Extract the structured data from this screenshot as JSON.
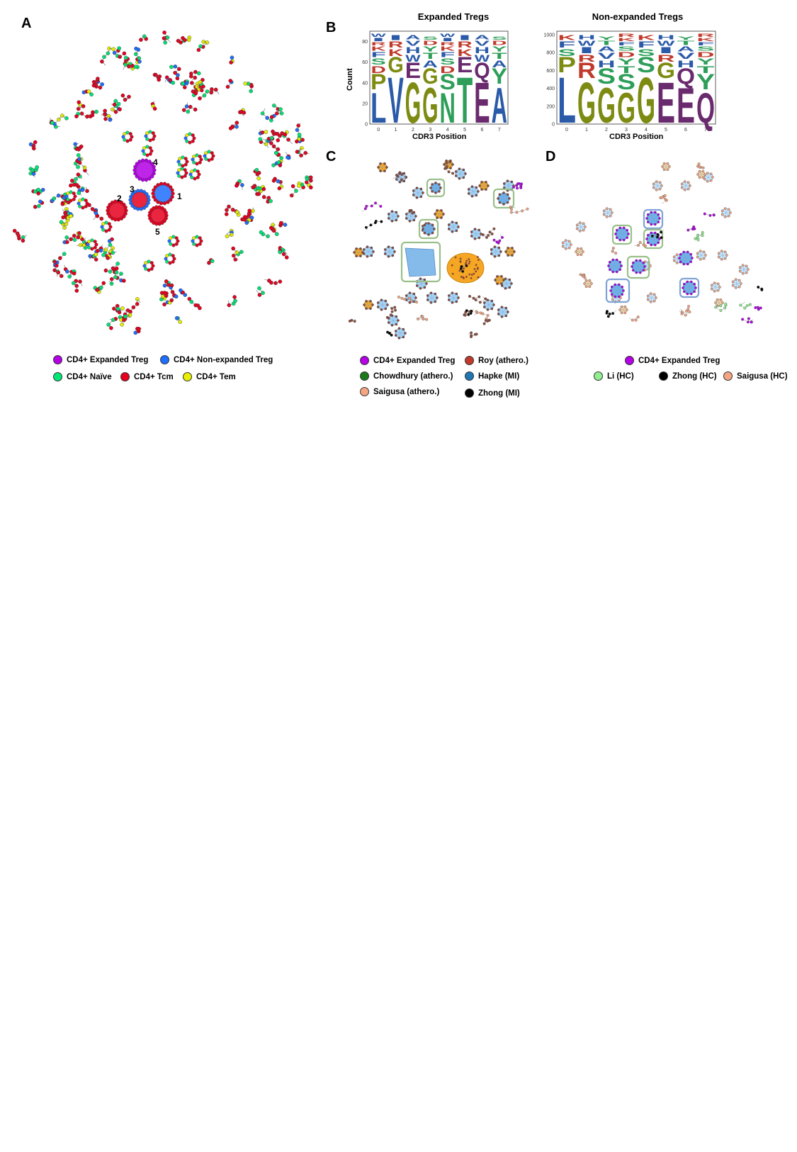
{
  "panels": {
    "A": {
      "letter": "A",
      "cluster_labels": [
        "1",
        "2",
        "3",
        "4",
        "5"
      ],
      "legend": [
        {
          "label": "CD4+ Expanded Treg",
          "color": "#b400e6"
        },
        {
          "label": "CD4+ Non-expanded Treg",
          "color": "#1e6eff"
        },
        {
          "label": "CD4+ Naïve",
          "color": "#00e676"
        },
        {
          "label": "CD4+ Tcm",
          "color": "#e6001e"
        },
        {
          "label": "CD4+ Tem",
          "color": "#e6f000"
        }
      ]
    },
    "B": {
      "letter": "B",
      "logos": [
        {
          "title": "Expanded Tregs",
          "ylabel": "Count",
          "xlabel": "CDR3 Position",
          "yticks": [
            "0",
            "20",
            "40",
            "60",
            "80"
          ],
          "xticks": [
            "0",
            "1",
            "2",
            "3",
            "4",
            "5",
            "6",
            "7"
          ],
          "letters": [
            "L",
            "V",
            "G",
            "G",
            "N",
            "T",
            "E",
            "A"
          ],
          "second": [
            "P",
            "G",
            "E",
            "G",
            "S",
            "E",
            "Q",
            "Y"
          ]
        },
        {
          "title": "Non-expanded Tregs",
          "ylabel": "",
          "xlabel": "CDR3 Position",
          "yticks": [
            "0",
            "200",
            "400",
            "600",
            "800",
            "1000"
          ],
          "xticks": [
            "0",
            "1",
            "2",
            "3",
            "4",
            "5",
            "6",
            "7"
          ],
          "letters": [
            "L",
            "G",
            "G",
            "G",
            "G",
            "E",
            "E",
            "Q"
          ],
          "second": [
            "P",
            "R",
            "S",
            "S",
            "S",
            "G",
            "Q",
            "Y"
          ]
        }
      ]
    },
    "C": {
      "letter": "C",
      "legend": [
        {
          "label": "CD4+ Expanded Treg",
          "color": "#b400e6"
        },
        {
          "label": "Roy (athero.)",
          "color": "#c0392b"
        },
        {
          "label": "Chowdhury (athero.)",
          "color": "#1a7a1a"
        },
        {
          "label": "Hapke (MI)",
          "color": "#1f77b4"
        },
        {
          "label": "Saigusa (athero.)",
          "color": "#f4a582"
        },
        {
          "label": "Zhong (MI)",
          "color": "#000000"
        }
      ]
    },
    "D": {
      "letter": "D",
      "legend": [
        {
          "label": "CD4+ Expanded Treg",
          "color": "#b400e6"
        },
        {
          "label": "Li (HC)",
          "color": "#90ee90"
        },
        {
          "label": "Zhong (HC)",
          "color": "#000000"
        },
        {
          "label": "Saigusa (HC)",
          "color": "#f4a582"
        }
      ]
    }
  }
}
